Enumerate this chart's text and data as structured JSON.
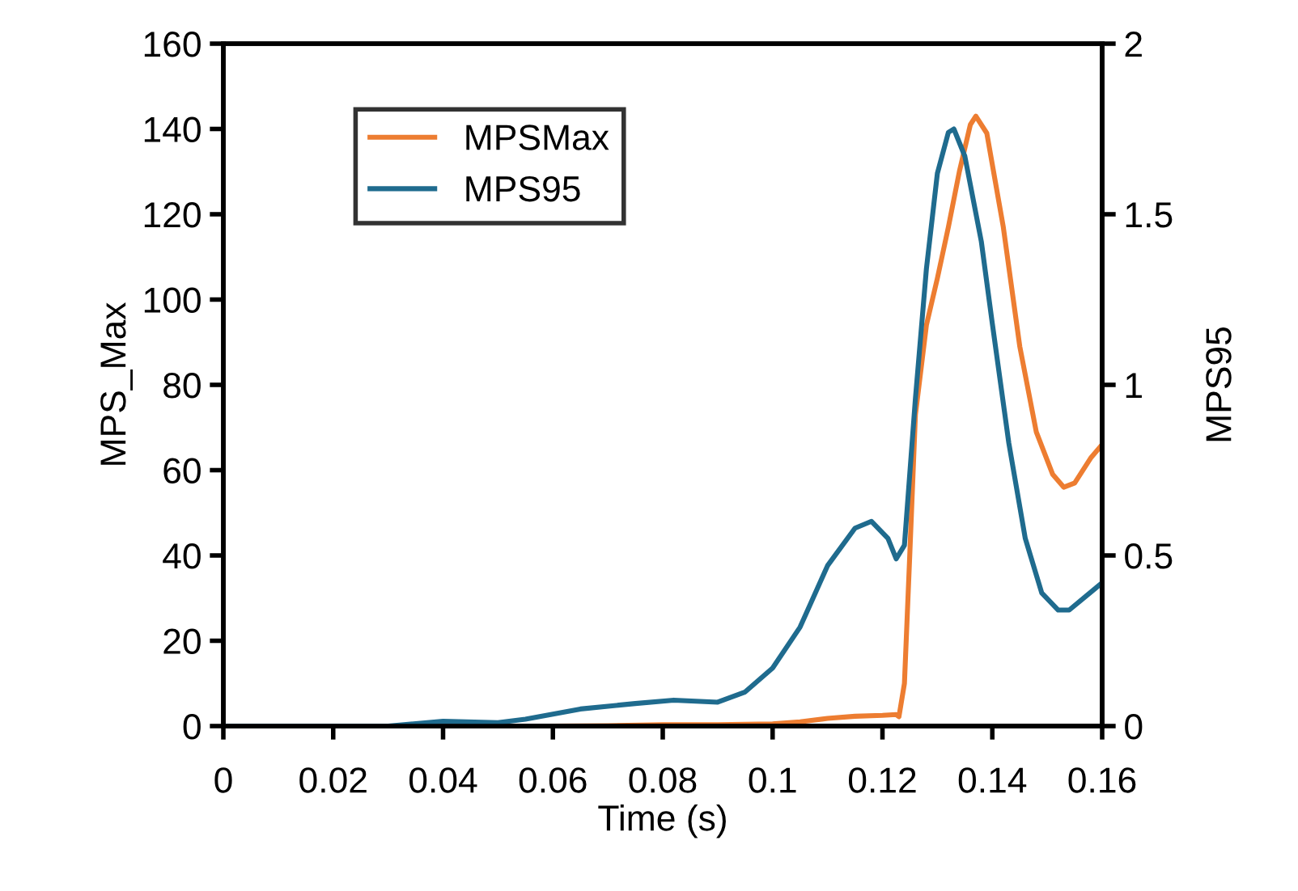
{
  "chart_data": {
    "type": "line",
    "xlabel": "Time (s)",
    "ylabel": "MPS_Max",
    "y2label": "MPS95",
    "xlim": [
      0,
      0.16
    ],
    "xticks": [
      0,
      0.02,
      0.04,
      0.06,
      0.08,
      0.1,
      0.12,
      0.14,
      0.16
    ],
    "ylim": [
      0,
      160
    ],
    "yticks": [
      0,
      20,
      40,
      60,
      80,
      100,
      120,
      140,
      160
    ],
    "y2lim": [
      0,
      2
    ],
    "y2ticks": [
      0,
      0.5,
      1,
      1.5,
      2
    ],
    "grid": false,
    "legend": "top left",
    "marker": "none",
    "line_style": "solid",
    "series": [
      {
        "name": "MPSMax",
        "color": "#ed7d31",
        "x": [
          0.06,
          0.07,
          0.08,
          0.09,
          0.1,
          0.105,
          0.11,
          0.115,
          0.12,
          0.1225,
          0.123,
          0.124,
          0.125,
          0.126,
          0.128,
          0.13,
          0.132,
          0.134,
          0.136,
          0.137,
          0.139,
          0.142,
          0.145,
          0.148,
          0.151,
          0.153,
          0.155,
          0.158,
          0.16
        ],
        "values": [
          0,
          0.1,
          0.3,
          0.3,
          0.5,
          1.0,
          1.8,
          2.3,
          2.5,
          2.7,
          2.2,
          10,
          41,
          73,
          94,
          105,
          117,
          130,
          141,
          143,
          139,
          117,
          89,
          69,
          59,
          56,
          57,
          63,
          66
        ]
      },
      {
        "name": "MPS95",
        "color": "#1f6b8e",
        "axis": "y2",
        "x": [
          0,
          0.03,
          0.04,
          0.05,
          0.055,
          0.065,
          0.075,
          0.082,
          0.09,
          0.095,
          0.1,
          0.105,
          0.11,
          0.115,
          0.118,
          0.121,
          0.1225,
          0.124,
          0.126,
          0.128,
          0.13,
          0.132,
          0.133,
          0.135,
          0.138,
          0.14,
          0.143,
          0.146,
          0.149,
          0.152,
          0.154,
          0.157,
          0.16
        ],
        "values": [
          0,
          0,
          0.014,
          0.01,
          0.02,
          0.05,
          0.066,
          0.076,
          0.07,
          0.1,
          0.17,
          0.29,
          0.47,
          0.58,
          0.6,
          0.55,
          0.49,
          0.53,
          0.96,
          1.34,
          1.62,
          1.74,
          1.75,
          1.67,
          1.42,
          1.18,
          0.83,
          0.55,
          0.39,
          0.34,
          0.34,
          0.38,
          0.42
        ]
      }
    ]
  }
}
